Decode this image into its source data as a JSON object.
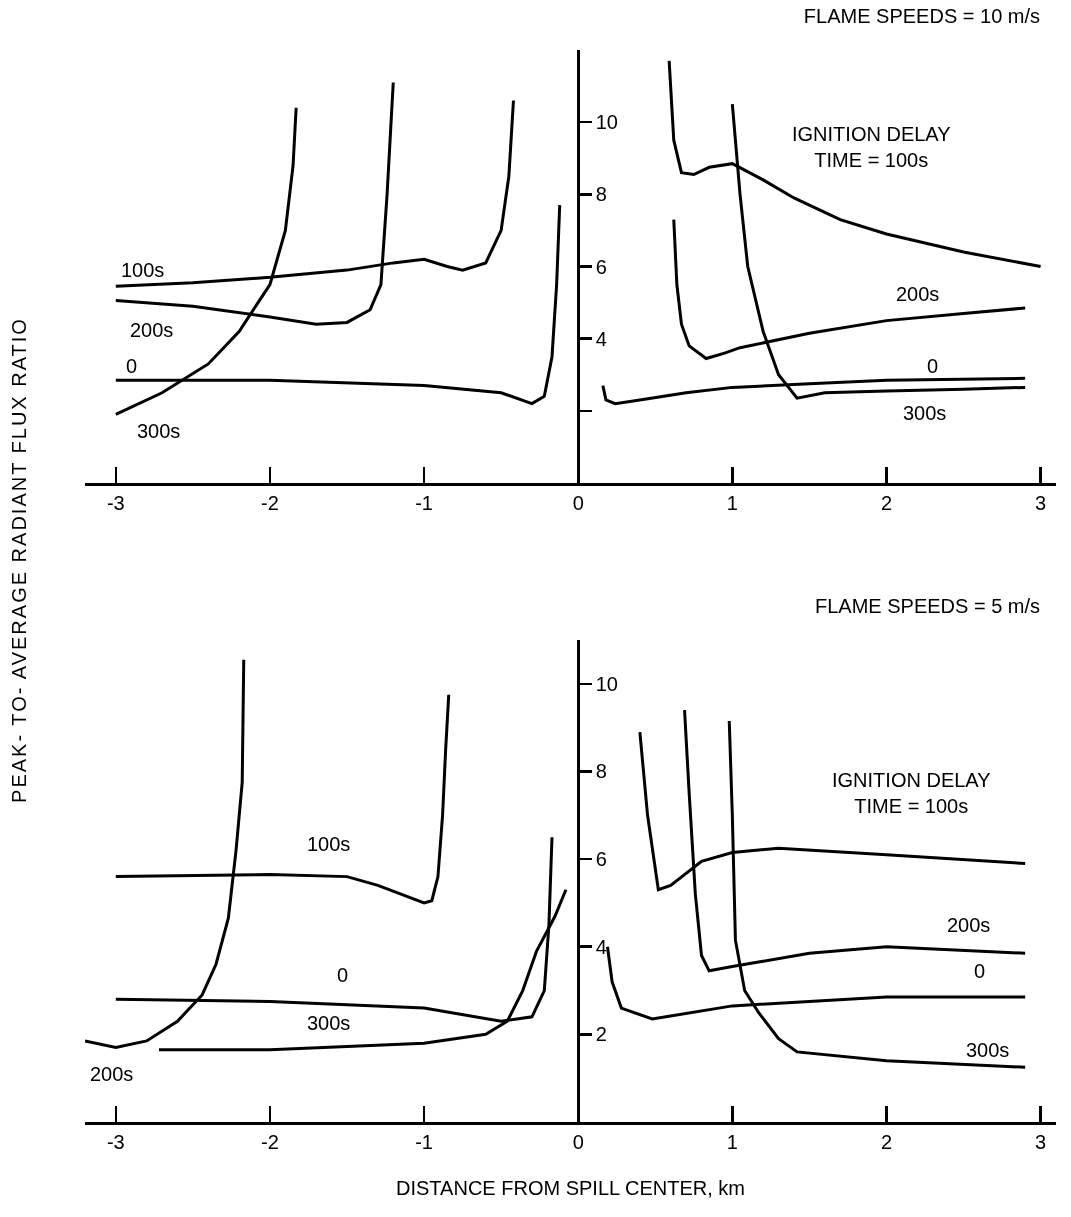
{
  "chart_data": [
    {
      "type": "line",
      "title": "FLAME SPEEDS = 10 m/s",
      "ylabel": "PEAK- TO- AVERAGE RADIANT FLUX RATIO",
      "xlim": [
        -3.2,
        3.1
      ],
      "xticks": [
        -3,
        -2,
        -1,
        0,
        1,
        2,
        3
      ],
      "ylim": [
        0,
        12
      ],
      "yticks": [
        {
          "value": 2,
          "label": null
        },
        4,
        6,
        8,
        10
      ],
      "series": [
        {
          "color": "#000000",
          "x": [
            -3,
            -2.5,
            -2,
            -1.5,
            -1.2,
            -1,
            -0.85,
            -0.75,
            -0.6,
            -0.5,
            -0.45,
            -0.42,
            null,
            0.59,
            0.62,
            0.67,
            0.75,
            0.85,
            1.0,
            1.2,
            1.4,
            1.7,
            2,
            2.5,
            3
          ],
          "values": [
            5.45,
            5.55,
            5.7,
            5.9,
            6.1,
            6.2,
            6.0,
            5.9,
            6.1,
            7.0,
            8.5,
            10.6,
            null,
            11.7,
            9.5,
            8.6,
            8.55,
            8.75,
            8.85,
            8.4,
            7.9,
            7.3,
            6.9,
            6.4,
            6.0
          ]
        },
        {
          "color": "#000000",
          "x": [
            -3,
            -2.5,
            -2,
            -1.7,
            -1.5,
            -1.35,
            -1.28,
            -1.24,
            -1.2,
            null,
            0.62,
            0.64,
            0.67,
            0.72,
            0.83,
            0.95,
            1.05,
            1.5,
            2,
            2.5,
            2.9
          ],
          "values": [
            5.06,
            4.9,
            4.6,
            4.4,
            4.45,
            4.8,
            5.5,
            8,
            11.1,
            null,
            7.3,
            5.5,
            4.4,
            3.8,
            3.45,
            3.6,
            3.75,
            4.15,
            4.5,
            4.7,
            4.85
          ]
        },
        {
          "color": "#000000",
          "x": [
            -3,
            -2,
            -1,
            -0.5,
            -0.3,
            -0.22,
            -0.17,
            -0.14,
            -0.12,
            null,
            0.16,
            0.18,
            0.24,
            0.4,
            0.7,
            1.0,
            1.5,
            2,
            2.9
          ],
          "values": [
            2.85,
            2.85,
            2.7,
            2.5,
            2.2,
            2.4,
            3.5,
            5.5,
            7.7,
            null,
            2.7,
            2.3,
            2.2,
            2.3,
            2.5,
            2.65,
            2.75,
            2.85,
            2.9
          ]
        },
        {
          "color": "#000000",
          "x": [
            -3,
            -2.7,
            -2.4,
            -2.2,
            -2.0,
            -1.9,
            -1.85,
            -1.83,
            null,
            1.0,
            1.05,
            1.1,
            1.2,
            1.3,
            1.42,
            1.6,
            2,
            2.5,
            2.9
          ],
          "values": [
            1.9,
            2.5,
            3.3,
            4.2,
            5.5,
            7.0,
            8.8,
            10.4,
            null,
            10.5,
            8.0,
            6.0,
            4.2,
            3.0,
            2.35,
            2.5,
            2.55,
            2.6,
            2.65
          ]
        }
      ],
      "annotations": [
        "100s",
        "200s",
        "0",
        "300s",
        "200s",
        "0",
        "300s",
        "IGNITION DELAY\nTIME = 100s"
      ]
    },
    {
      "type": "line",
      "title": "FLAME SPEEDS = 5 m/s",
      "xlabel": "DISTANCE FROM SPILL CENTER, km",
      "xlim": [
        -3.2,
        3.1
      ],
      "xticks": [
        -3,
        -2,
        -1,
        0,
        1,
        2,
        3
      ],
      "ylim": [
        0,
        11
      ],
      "yticks": [
        2,
        4,
        6,
        8,
        10
      ],
      "series": [
        {
          "color": "#000000",
          "x": [
            -3,
            -2,
            -1.5,
            -1.3,
            -1.15,
            -1.0,
            -0.95,
            -0.91,
            -0.88,
            -0.86,
            -0.84,
            null,
            0.4,
            0.45,
            0.52,
            0.6,
            0.8,
            1.0,
            1.3,
            2,
            2.9
          ],
          "values": [
            5.6,
            5.65,
            5.6,
            5.4,
            5.2,
            5.0,
            5.05,
            5.6,
            7.0,
            8.5,
            9.75,
            null,
            8.9,
            7.0,
            5.3,
            5.4,
            5.95,
            6.15,
            6.25,
            6.1,
            5.9
          ]
        },
        {
          "color": "#000000",
          "x": [
            -3.2,
            -3,
            -2.8,
            -2.6,
            -2.44,
            -2.35,
            -2.27,
            -2.22,
            -2.18,
            -2.17,
            null,
            0.69,
            0.72,
            0.76,
            0.8,
            0.85,
            1.0,
            1.17,
            1.5,
            2,
            2.9
          ],
          "values": [
            1.85,
            1.7,
            1.85,
            2.3,
            2.9,
            3.6,
            4.65,
            6.2,
            7.75,
            10.55,
            null,
            9.4,
            7.5,
            5.2,
            3.8,
            3.45,
            3.55,
            3.65,
            3.85,
            4.0,
            3.85
          ]
        },
        {
          "color": "#000000",
          "x": [
            -3,
            -2,
            -1,
            -0.5,
            -0.3,
            -0.22,
            -0.19,
            -0.17,
            null,
            0.19,
            0.22,
            0.28,
            0.48,
            1.0,
            2,
            2.9
          ],
          "values": [
            2.8,
            2.75,
            2.6,
            2.3,
            2.4,
            3.0,
            4.5,
            6.5,
            null,
            4.0,
            3.2,
            2.6,
            2.35,
            2.65,
            2.85,
            2.85
          ]
        },
        {
          "color": "#000000",
          "x": [
            -2.72,
            -2,
            -1,
            -0.6,
            -0.46,
            -0.36,
            -0.27,
            -0.15,
            -0.08,
            null,
            0.98,
            1.0,
            1.02,
            1.08,
            1.17,
            1.3,
            1.42,
            2,
            2.9
          ],
          "values": [
            1.65,
            1.65,
            1.8,
            2.0,
            2.3,
            3.0,
            3.9,
            4.7,
            5.3,
            null,
            9.15,
            7.0,
            4.15,
            3.0,
            2.5,
            1.9,
            1.6,
            1.4,
            1.25
          ]
        }
      ],
      "annotations": [
        "100s",
        "0",
        "300s",
        "200s",
        "200s",
        "0",
        "300s",
        "IGNITION DELAY\nTIME = 100s"
      ]
    }
  ]
}
